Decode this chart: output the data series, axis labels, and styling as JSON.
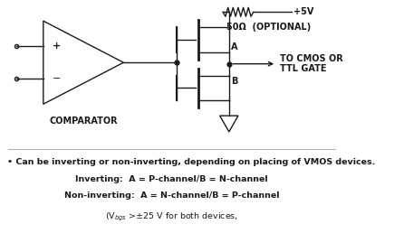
{
  "bg_color": "#ffffff",
  "line_color": "#1a1a1a",
  "annotations": {
    "plus_minus_plus": "+",
    "plus_minus_minus": "−",
    "comparator": "COMPARATOR",
    "plus5v": "+5V",
    "r50": "50Ω  (OPTIONAL)",
    "labelA": "A",
    "labelB": "B",
    "tocmos": "TO CMOS OR\nTTL GATE"
  },
  "bullet1": "• Can be inverting or non-inverting, depending on placing of VMOS devices.",
  "bullet2": "Inverting:  A = P-channel/B = N-channel",
  "bullet3": "Non-inverting:  A = N-channel/B = P-channel",
  "bullet4": "(V$_{bgs}$ >±25 V for both devices,"
}
